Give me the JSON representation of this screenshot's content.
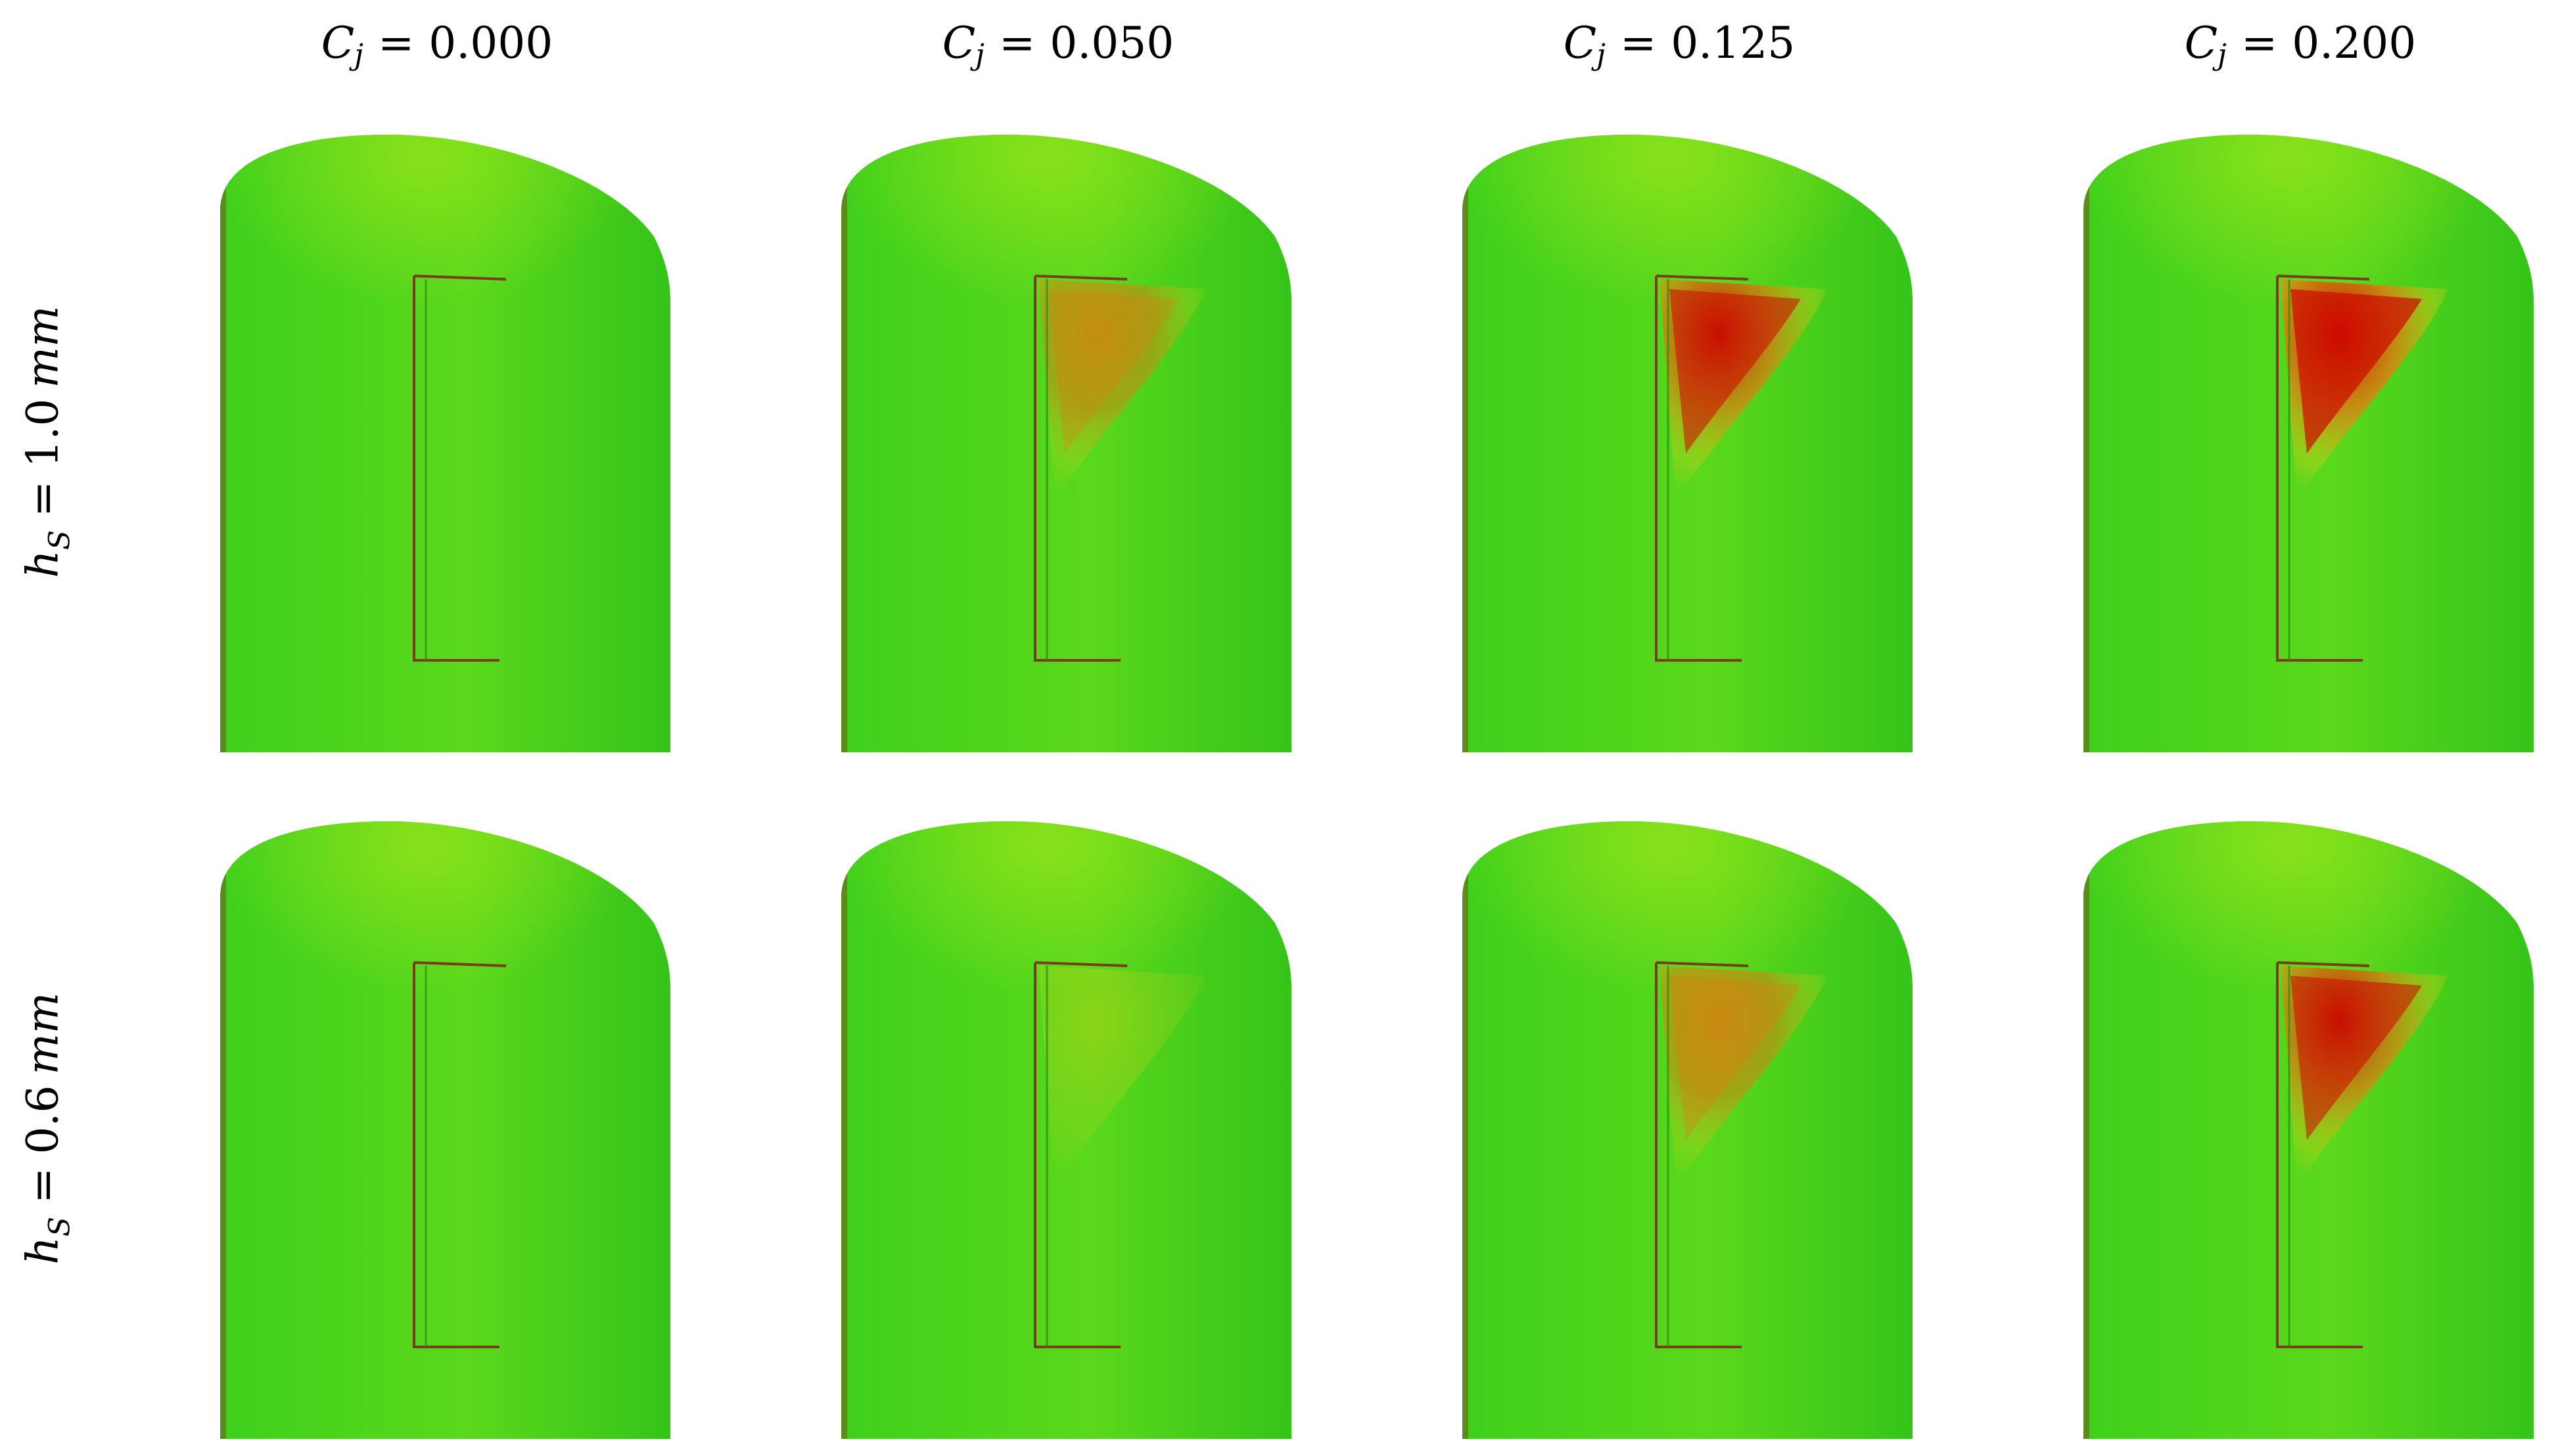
{
  "columns": [
    {
      "symbol": "C",
      "subscript": "j",
      "operator": "=",
      "value": "0.000"
    },
    {
      "symbol": "C",
      "subscript": "j",
      "operator": "=",
      "value": "0.050"
    },
    {
      "symbol": "C",
      "subscript": "j",
      "operator": "=",
      "value": "0.125"
    },
    {
      "symbol": "C",
      "subscript": "j",
      "operator": "=",
      "value": "0.200"
    }
  ],
  "rows": [
    {
      "symbol": "h",
      "subscript": "S",
      "operator": "=",
      "value": "1.0",
      "unit": "mm"
    },
    {
      "symbol": "h",
      "subscript": "S",
      "operator": "=",
      "value": "0.6",
      "unit": "mm"
    }
  ],
  "colors": {
    "background_green": "#3fd01c",
    "light_green": "#8ee21a",
    "yellow": "#d6d017",
    "orange": "#e07a10",
    "red": "#cc0a00",
    "blue": "#1e7fd8",
    "slot_edge": "#7a3b18"
  },
  "panels": [
    {
      "row": 0,
      "col": 0,
      "hot_region_intensity": 0.0
    },
    {
      "row": 0,
      "col": 1,
      "hot_region_intensity": 0.6
    },
    {
      "row": 0,
      "col": 2,
      "hot_region_intensity": 0.85
    },
    {
      "row": 0,
      "col": 3,
      "hot_region_intensity": 1.0
    },
    {
      "row": 1,
      "col": 0,
      "hot_region_intensity": 0.0
    },
    {
      "row": 1,
      "col": 1,
      "hot_region_intensity": 0.3
    },
    {
      "row": 1,
      "col": 2,
      "hot_region_intensity": 0.65
    },
    {
      "row": 1,
      "col": 3,
      "hot_region_intensity": 0.85
    }
  ]
}
